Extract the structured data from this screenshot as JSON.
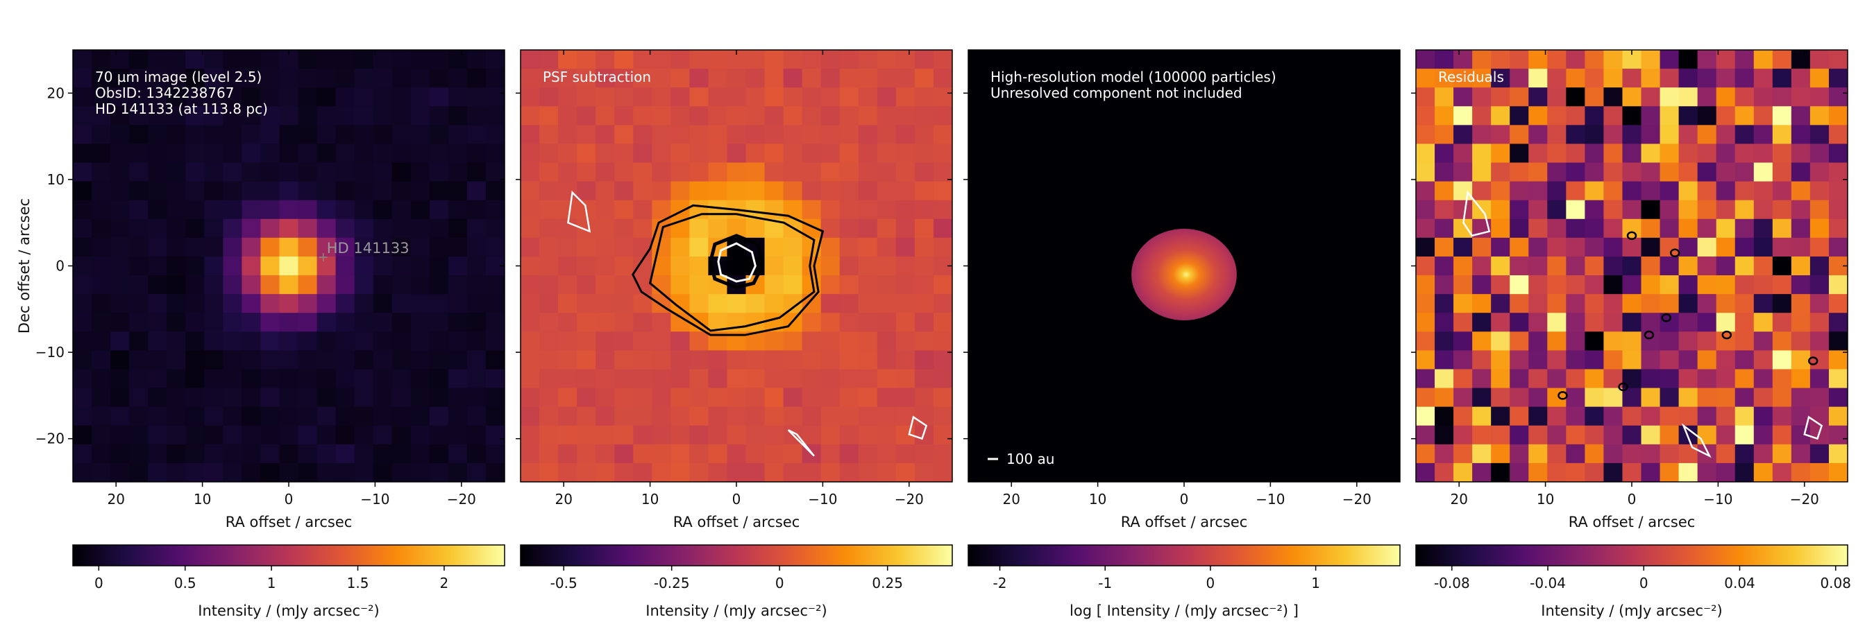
{
  "figure": {
    "ylabel": "Dec offset / arcsec",
    "xlabel": "RA offset / arcsec"
  },
  "chart_data": [
    {
      "type": "heatmap",
      "title": "",
      "xlabel": "RA offset / arcsec",
      "ylabel": "Dec offset / arcsec",
      "xlim": [
        25,
        -25
      ],
      "ylim": [
        -25,
        25
      ],
      "xticks": [
        20,
        10,
        0,
        -10,
        -20
      ],
      "yticks": [
        20,
        10,
        0,
        -10,
        -20
      ],
      "annotations": [
        "70 µm image (level 2.5)",
        "ObsID: 1342238767",
        "HD 141133 (at 113.8 pc)"
      ],
      "star_label": "HD 141133",
      "star_position": [
        -4.0,
        1.0
      ],
      "image_model": "gaussian source at (0,0), FWHM ≈ 8 arcsec, peak ≈ 2.3, noisy background",
      "colormap": "inferno",
      "colorbar": {
        "label": "Intensity / (mJy arcsec⁻²)",
        "ticks": [
          "0",
          "0.5",
          "1",
          "1.5",
          "2"
        ],
        "tick_values": [
          0,
          0.5,
          1,
          1.5,
          2
        ],
        "range": [
          -0.15,
          2.35
        ]
      }
    },
    {
      "type": "heatmap",
      "title": "",
      "xlabel": "RA offset / arcsec",
      "xlim": [
        25,
        -25
      ],
      "ylim": [
        -25,
        25
      ],
      "xticks": [
        20,
        10,
        0,
        -10,
        -20
      ],
      "annotations": [
        "PSF subtraction"
      ],
      "image_model": "ring-like extended residual around (0,0) radius ≈ 10 arcsec, negative core, contours at ±levels",
      "colormap": "inferno",
      "colorbar": {
        "label": "Intensity / (mJy arcsec⁻²)",
        "ticks": [
          "-0.5",
          "-0.25",
          "0",
          "0.25"
        ],
        "tick_values": [
          -0.5,
          -0.25,
          0,
          0.25
        ],
        "range": [
          -0.6,
          0.4
        ]
      }
    },
    {
      "type": "heatmap",
      "title": "",
      "xlabel": "RA offset / arcsec",
      "xlim": [
        25,
        -25
      ],
      "ylim": [
        -25,
        25
      ],
      "xticks": [
        20,
        10,
        0,
        -10,
        -20
      ],
      "annotations": [
        "High-resolution model (100000 particles)",
        "Unresolved component not included"
      ],
      "scalebar_label": "100 au",
      "image_model": "elliptical disc centred (0,-1), semi-axes ≈ 6 x 5 arcsec",
      "colormap": "inferno",
      "colorbar": {
        "label": "log [ Intensity / (mJy arcsec⁻²) ]",
        "ticks": [
          "-2",
          "-1",
          "0",
          "1"
        ],
        "tick_values": [
          -2,
          -1,
          0,
          1
        ],
        "range": [
          -2.3,
          1.8
        ]
      }
    },
    {
      "type": "heatmap",
      "title": "",
      "xlabel": "RA offset / arcsec",
      "xlim": [
        25,
        -25
      ],
      "ylim": [
        -25,
        25
      ],
      "xticks": [
        20,
        10,
        0,
        -10,
        -20
      ],
      "annotations": [
        "Residuals"
      ],
      "image_model": "pure noise field, scattered ±contours",
      "colormap": "inferno",
      "colorbar": {
        "label": "Intensity / (mJy arcsec⁻²)",
        "ticks": [
          "-0.08",
          "-0.04",
          "0",
          "0.04",
          "0.08"
        ],
        "tick_values": [
          -0.08,
          -0.04,
          0,
          0.04,
          0.08
        ],
        "range": [
          -0.095,
          0.085
        ]
      }
    }
  ]
}
